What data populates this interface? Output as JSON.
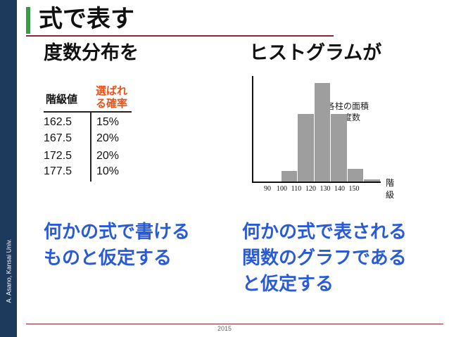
{
  "sidebar": {
    "label": "A. Asano, Kansai Univ."
  },
  "title": "式で表す",
  "left": {
    "heading": "度数分布を",
    "table": {
      "col1": "階級値",
      "col2_line1": "選ばれ",
      "col2_line2": "る確率",
      "rows": [
        {
          "grade": "162.5",
          "pct": "15%"
        },
        {
          "grade": "167.5",
          "pct": "20%"
        },
        {
          "grade": "172.5",
          "pct": "20%"
        },
        {
          "grade": "177.5",
          "pct": "10%"
        }
      ]
    },
    "statement_line1": "何かの式で書ける",
    "statement_line2": "ものと仮定する"
  },
  "right": {
    "heading": "ヒストグラムが",
    "statement_line1": "何かの式で表される",
    "statement_line2": "関数のグラフである",
    "statement_line3": "と仮定する"
  },
  "chart_data": {
    "type": "bar",
    "title": "",
    "categories": [
      "90",
      "100",
      "110",
      "120",
      "130",
      "140",
      "150"
    ],
    "x_ticks": [
      "90",
      "100",
      "110",
      "120",
      "130",
      "140",
      "150"
    ],
    "bins": [
      {
        "from": 90,
        "to": 100,
        "value": 0
      },
      {
        "from": 100,
        "to": 110,
        "value": 1
      },
      {
        "from": 110,
        "to": 120,
        "value": 6.5
      },
      {
        "from": 120,
        "to": 130,
        "value": 9.5
      },
      {
        "from": 130,
        "to": 140,
        "value": 6.5
      },
      {
        "from": 140,
        "to": 150,
        "value": 1.2
      },
      {
        "from": 150,
        "to": 160,
        "value": 0.2
      }
    ],
    "xlabel": "階級",
    "annotation_line1": "各柱の面積",
    "annotation_line2": "＝度数",
    "colors": {
      "bar": "#9e9e9e"
    }
  },
  "footer": {
    "year": "2015"
  },
  "colors": {
    "sidebar": "#1d3a5c",
    "accent": "#3a9a4a",
    "rule": "#8a2a2a",
    "highlight": "#e8531a",
    "blue": "#2a5bd7"
  }
}
